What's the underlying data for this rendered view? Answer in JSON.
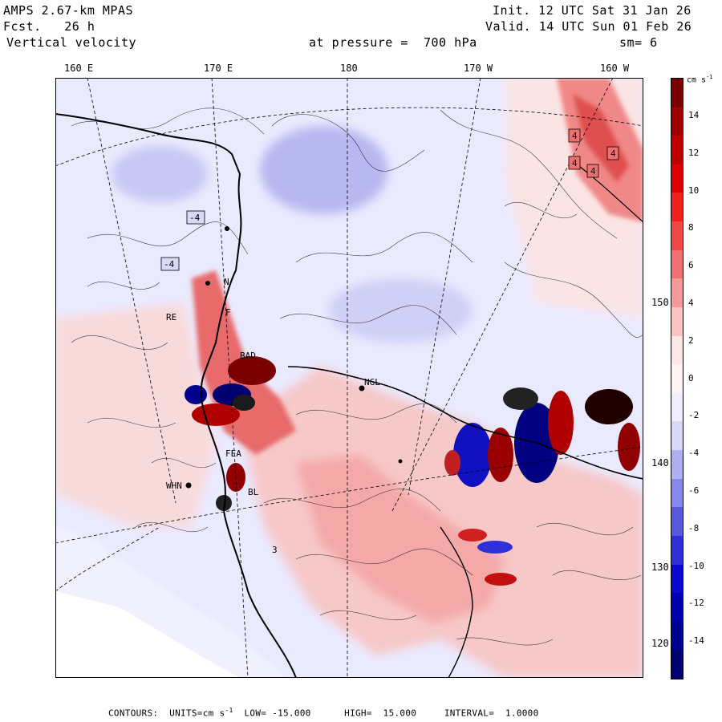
{
  "header": {
    "model": "AMPS 2.67-km MPAS",
    "fcst_label": "Fcst.",
    "fcst_value": "26 h",
    "field": "Vertical velocity",
    "init": "Init. 12 UTC Sat 31 Jan 26",
    "valid": "Valid. 14 UTC Sun 01 Feb 26",
    "pressure_label": "at pressure =",
    "pressure_value": "700 hPa",
    "smoothing": "sm= 6"
  },
  "longitude_labels": [
    "160 E",
    "170 E",
    "180",
    "170 W",
    "160 W"
  ],
  "latitude_labels": [
    "150 W",
    "140 W",
    "130 W",
    "120 W"
  ],
  "colorbar": {
    "unit": "cm s",
    "unit_exp": "-1",
    "ticks": [
      "14",
      "12",
      "10",
      "8",
      "6",
      "4",
      "2",
      "0",
      "-2",
      "-4",
      "-6",
      "-8",
      "-10",
      "-12",
      "-14"
    ],
    "colors": [
      "#7a0000",
      "#a00000",
      "#c00000",
      "#e00000",
      "#f02020",
      "#f04848",
      "#f07070",
      "#f49898",
      "#f8c4c4",
      "#fce6e6",
      "#fff2f2",
      "#eeeeff",
      "#d8d8f8",
      "#b0b0f0",
      "#8888ec",
      "#5858e0",
      "#3030d8",
      "#0808d0",
      "#0000b0",
      "#000090",
      "#000070"
    ]
  },
  "stations": [
    "NGL",
    "WHN",
    "RE",
    "FEA",
    "BL",
    "BAD",
    "N",
    "F",
    "3"
  ],
  "contour_labels": [
    "4",
    "4",
    "4",
    "4",
    "-4",
    "-4"
  ],
  "footer": {
    "contours_label": "CONTOURS:",
    "units_label": "UNITS=cm s",
    "units_exp": "-1",
    "low_label": "LOW=",
    "low_value": "-15.000",
    "high_label": "HIGH=",
    "high_value": "15.000",
    "interval_label": "INTERVAL=",
    "interval_value": "1.0000"
  }
}
